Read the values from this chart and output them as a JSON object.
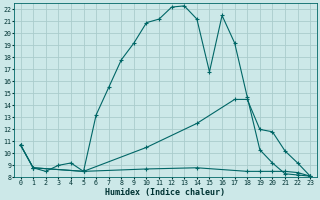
{
  "xlabel": "Humidex (Indice chaleur)",
  "bg_color": "#cce8e8",
  "grid_color": "#aacccc",
  "line_color": "#006666",
  "ylim": [
    8,
    22.5
  ],
  "xlim": [
    -0.5,
    23.5
  ],
  "yticks": [
    8,
    9,
    10,
    11,
    12,
    13,
    14,
    15,
    16,
    17,
    18,
    19,
    20,
    21,
    22
  ],
  "xticks": [
    0,
    1,
    2,
    3,
    4,
    5,
    6,
    7,
    8,
    9,
    10,
    11,
    12,
    13,
    14,
    15,
    16,
    17,
    18,
    19,
    20,
    21,
    22,
    23
  ],
  "line1_x": [
    0,
    1,
    2,
    3,
    4,
    5,
    6,
    7,
    8,
    9,
    10,
    11,
    12,
    13,
    14,
    15,
    16,
    17,
    18,
    19,
    20,
    21,
    22,
    23
  ],
  "line1_y": [
    10.7,
    8.8,
    8.5,
    9.0,
    9.2,
    8.5,
    13.2,
    15.5,
    17.8,
    19.2,
    20.9,
    21.2,
    22.2,
    22.3,
    21.2,
    16.8,
    21.5,
    19.2,
    14.7,
    10.3,
    9.2,
    8.3,
    8.2,
    8.1
  ],
  "line2_x": [
    0,
    1,
    5,
    10,
    14,
    17,
    18,
    19,
    20,
    21,
    22,
    23
  ],
  "line2_y": [
    10.7,
    8.8,
    8.5,
    10.5,
    12.5,
    14.5,
    14.5,
    12.0,
    11.8,
    10.2,
    9.2,
    8.1
  ],
  "line3_x": [
    0,
    1,
    5,
    10,
    14,
    18,
    19,
    20,
    21,
    22,
    23
  ],
  "line3_y": [
    10.7,
    8.8,
    8.5,
    8.7,
    8.8,
    8.5,
    8.5,
    8.5,
    8.5,
    8.4,
    8.1
  ]
}
